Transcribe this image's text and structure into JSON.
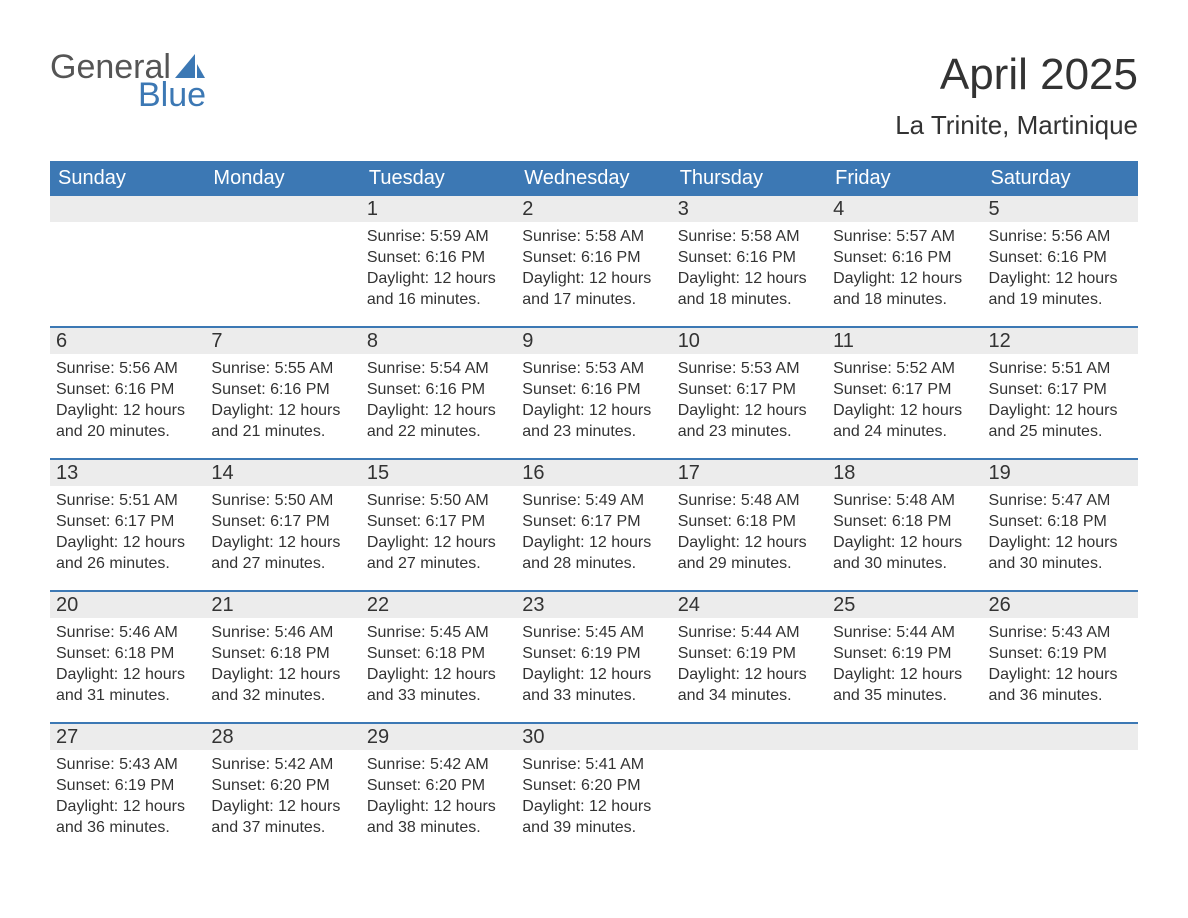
{
  "logo": {
    "text_top": "General",
    "text_bottom": "Blue",
    "sail_color": "#3c78b4",
    "text_top_color": "#555555"
  },
  "header": {
    "month_title": "April 2025",
    "location": "La Trinite, Martinique"
  },
  "weekdays": [
    "Sunday",
    "Monday",
    "Tuesday",
    "Wednesday",
    "Thursday",
    "Friday",
    "Saturday"
  ],
  "style": {
    "header_bg": "#3c78b4",
    "header_text": "#ffffff",
    "daynum_bg": "#ececec",
    "body_text": "#333333",
    "week_border": "#3c78b4",
    "weekday_fontsize": 20,
    "daynum_fontsize": 20,
    "body_fontsize": 16,
    "month_title_fontsize": 44,
    "location_fontsize": 26
  },
  "weeks": [
    [
      {
        "day": "",
        "sunrise": "",
        "sunset": "",
        "daylight": ""
      },
      {
        "day": "",
        "sunrise": "",
        "sunset": "",
        "daylight": ""
      },
      {
        "day": "1",
        "sunrise": "Sunrise: 5:59 AM",
        "sunset": "Sunset: 6:16 PM",
        "daylight": "Daylight: 12 hours and 16 minutes."
      },
      {
        "day": "2",
        "sunrise": "Sunrise: 5:58 AM",
        "sunset": "Sunset: 6:16 PM",
        "daylight": "Daylight: 12 hours and 17 minutes."
      },
      {
        "day": "3",
        "sunrise": "Sunrise: 5:58 AM",
        "sunset": "Sunset: 6:16 PM",
        "daylight": "Daylight: 12 hours and 18 minutes."
      },
      {
        "day": "4",
        "sunrise": "Sunrise: 5:57 AM",
        "sunset": "Sunset: 6:16 PM",
        "daylight": "Daylight: 12 hours and 18 minutes."
      },
      {
        "day": "5",
        "sunrise": "Sunrise: 5:56 AM",
        "sunset": "Sunset: 6:16 PM",
        "daylight": "Daylight: 12 hours and 19 minutes."
      }
    ],
    [
      {
        "day": "6",
        "sunrise": "Sunrise: 5:56 AM",
        "sunset": "Sunset: 6:16 PM",
        "daylight": "Daylight: 12 hours and 20 minutes."
      },
      {
        "day": "7",
        "sunrise": "Sunrise: 5:55 AM",
        "sunset": "Sunset: 6:16 PM",
        "daylight": "Daylight: 12 hours and 21 minutes."
      },
      {
        "day": "8",
        "sunrise": "Sunrise: 5:54 AM",
        "sunset": "Sunset: 6:16 PM",
        "daylight": "Daylight: 12 hours and 22 minutes."
      },
      {
        "day": "9",
        "sunrise": "Sunrise: 5:53 AM",
        "sunset": "Sunset: 6:16 PM",
        "daylight": "Daylight: 12 hours and 23 minutes."
      },
      {
        "day": "10",
        "sunrise": "Sunrise: 5:53 AM",
        "sunset": "Sunset: 6:17 PM",
        "daylight": "Daylight: 12 hours and 23 minutes."
      },
      {
        "day": "11",
        "sunrise": "Sunrise: 5:52 AM",
        "sunset": "Sunset: 6:17 PM",
        "daylight": "Daylight: 12 hours and 24 minutes."
      },
      {
        "day": "12",
        "sunrise": "Sunrise: 5:51 AM",
        "sunset": "Sunset: 6:17 PM",
        "daylight": "Daylight: 12 hours and 25 minutes."
      }
    ],
    [
      {
        "day": "13",
        "sunrise": "Sunrise: 5:51 AM",
        "sunset": "Sunset: 6:17 PM",
        "daylight": "Daylight: 12 hours and 26 minutes."
      },
      {
        "day": "14",
        "sunrise": "Sunrise: 5:50 AM",
        "sunset": "Sunset: 6:17 PM",
        "daylight": "Daylight: 12 hours and 27 minutes."
      },
      {
        "day": "15",
        "sunrise": "Sunrise: 5:50 AM",
        "sunset": "Sunset: 6:17 PM",
        "daylight": "Daylight: 12 hours and 27 minutes."
      },
      {
        "day": "16",
        "sunrise": "Sunrise: 5:49 AM",
        "sunset": "Sunset: 6:17 PM",
        "daylight": "Daylight: 12 hours and 28 minutes."
      },
      {
        "day": "17",
        "sunrise": "Sunrise: 5:48 AM",
        "sunset": "Sunset: 6:18 PM",
        "daylight": "Daylight: 12 hours and 29 minutes."
      },
      {
        "day": "18",
        "sunrise": "Sunrise: 5:48 AM",
        "sunset": "Sunset: 6:18 PM",
        "daylight": "Daylight: 12 hours and 30 minutes."
      },
      {
        "day": "19",
        "sunrise": "Sunrise: 5:47 AM",
        "sunset": "Sunset: 6:18 PM",
        "daylight": "Daylight: 12 hours and 30 minutes."
      }
    ],
    [
      {
        "day": "20",
        "sunrise": "Sunrise: 5:46 AM",
        "sunset": "Sunset: 6:18 PM",
        "daylight": "Daylight: 12 hours and 31 minutes."
      },
      {
        "day": "21",
        "sunrise": "Sunrise: 5:46 AM",
        "sunset": "Sunset: 6:18 PM",
        "daylight": "Daylight: 12 hours and 32 minutes."
      },
      {
        "day": "22",
        "sunrise": "Sunrise: 5:45 AM",
        "sunset": "Sunset: 6:18 PM",
        "daylight": "Daylight: 12 hours and 33 minutes."
      },
      {
        "day": "23",
        "sunrise": "Sunrise: 5:45 AM",
        "sunset": "Sunset: 6:19 PM",
        "daylight": "Daylight: 12 hours and 33 minutes."
      },
      {
        "day": "24",
        "sunrise": "Sunrise: 5:44 AM",
        "sunset": "Sunset: 6:19 PM",
        "daylight": "Daylight: 12 hours and 34 minutes."
      },
      {
        "day": "25",
        "sunrise": "Sunrise: 5:44 AM",
        "sunset": "Sunset: 6:19 PM",
        "daylight": "Daylight: 12 hours and 35 minutes."
      },
      {
        "day": "26",
        "sunrise": "Sunrise: 5:43 AM",
        "sunset": "Sunset: 6:19 PM",
        "daylight": "Daylight: 12 hours and 36 minutes."
      }
    ],
    [
      {
        "day": "27",
        "sunrise": "Sunrise: 5:43 AM",
        "sunset": "Sunset: 6:19 PM",
        "daylight": "Daylight: 12 hours and 36 minutes."
      },
      {
        "day": "28",
        "sunrise": "Sunrise: 5:42 AM",
        "sunset": "Sunset: 6:20 PM",
        "daylight": "Daylight: 12 hours and 37 minutes."
      },
      {
        "day": "29",
        "sunrise": "Sunrise: 5:42 AM",
        "sunset": "Sunset: 6:20 PM",
        "daylight": "Daylight: 12 hours and 38 minutes."
      },
      {
        "day": "30",
        "sunrise": "Sunrise: 5:41 AM",
        "sunset": "Sunset: 6:20 PM",
        "daylight": "Daylight: 12 hours and 39 minutes."
      },
      {
        "day": "",
        "sunrise": "",
        "sunset": "",
        "daylight": ""
      },
      {
        "day": "",
        "sunrise": "",
        "sunset": "",
        "daylight": ""
      },
      {
        "day": "",
        "sunrise": "",
        "sunset": "",
        "daylight": ""
      }
    ]
  ]
}
